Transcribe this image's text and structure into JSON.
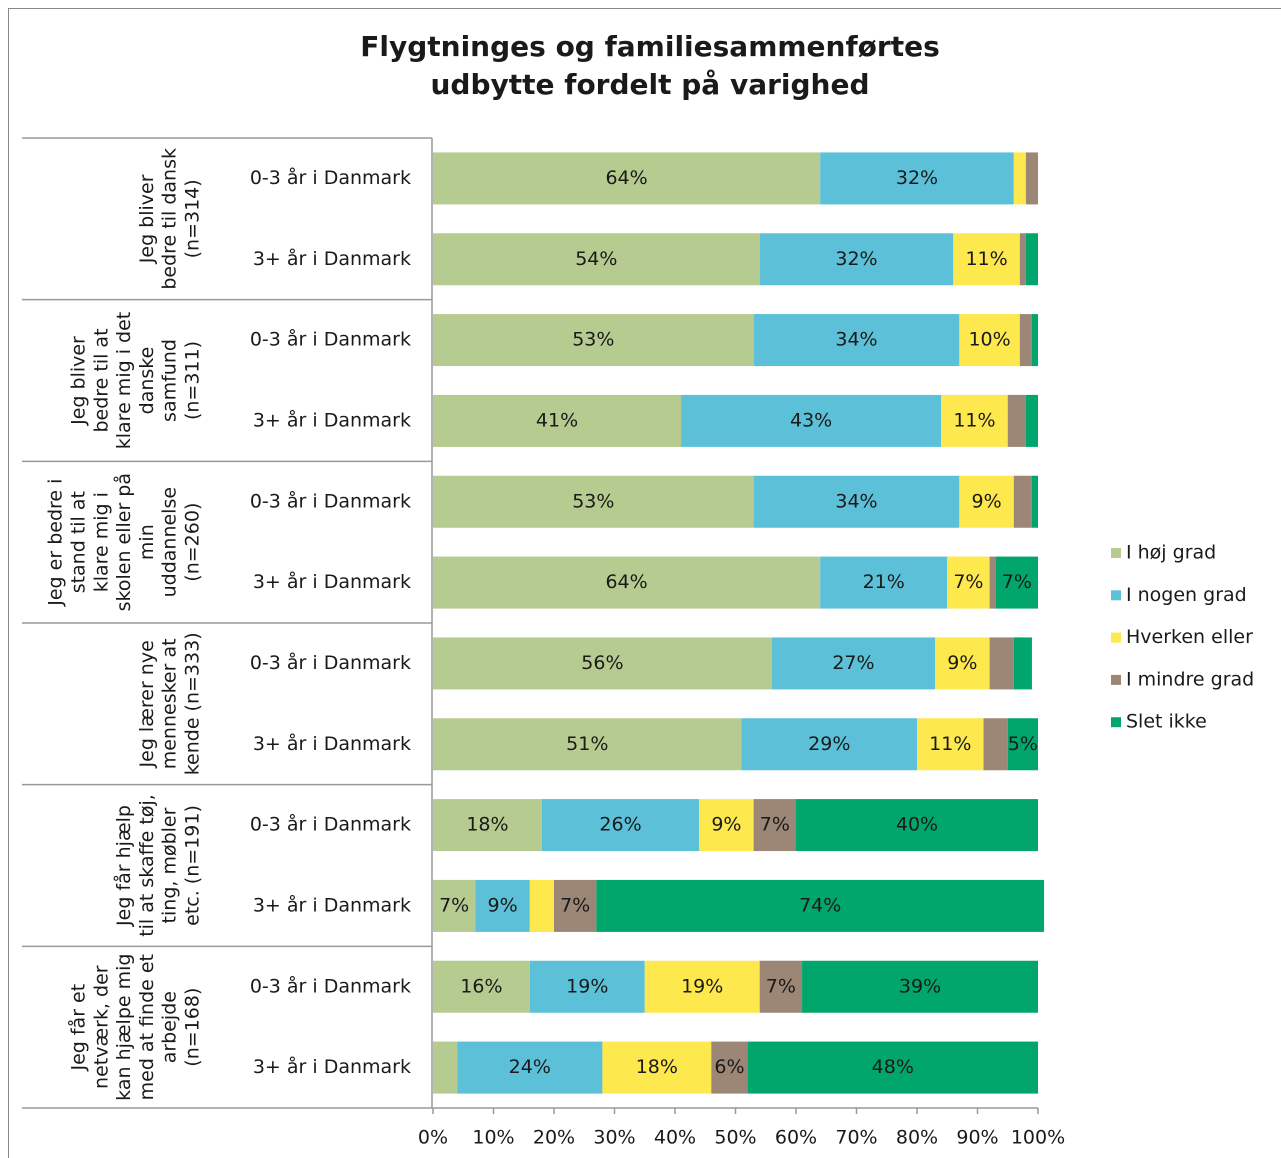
{
  "chart_data": {
    "type": "stacked_barh",
    "title_lines": [
      "Flygtninges og familiesammenførtes",
      "udbytte fordelt på varighed"
    ],
    "groups": [
      {
        "lines": [
          "Jeg bliver",
          "bedre til dansk",
          "(n=314)"
        ]
      },
      {
        "lines": [
          "Jeg bliver",
          "bedre til at",
          "klare mig i det",
          "danske",
          "samfund",
          "(n=311)"
        ]
      },
      {
        "lines": [
          "Jeg er bedre i",
          "stand til at",
          "klare mig i",
          "skolen eller på",
          "min",
          "uddannelse",
          "(n=260)"
        ]
      },
      {
        "lines": [
          "Jeg lærer nye",
          "mennesker at",
          "kende (n=333)"
        ]
      },
      {
        "lines": [
          "Jeg får hjælp",
          "til at skaffe tøj,",
          "ting, møbler",
          "etc. (n=191)"
        ]
      },
      {
        "lines": [
          "Jeg får et",
          "netværk, der",
          "kan hjælpe mig",
          "med at finde et",
          "arbejde",
          "(n=168)"
        ]
      }
    ],
    "categories": [
      "0-3 år i Danmark",
      "3+ år i Danmark",
      "0-3 år i Danmark",
      "3+ år i Danmark",
      "0-3 år i Danmark",
      "3+ år i Danmark",
      "0-3 år i Danmark",
      "3+ år i Danmark",
      "0-3 år i Danmark",
      "3+ år i Danmark",
      "0-3 år i Danmark",
      "3+ år i Danmark"
    ],
    "series": [
      {
        "name": "I høj grad",
        "color": "#b6cb8f",
        "values": [
          64,
          54,
          53,
          41,
          53,
          64,
          56,
          51,
          18,
          7,
          16,
          4
        ],
        "value_labels": [
          "64%",
          "54%",
          "53%",
          "41%",
          "53%",
          "64%",
          "56%",
          "51%",
          "18%",
          "7%",
          "16%",
          null
        ]
      },
      {
        "name": "I nogen grad",
        "color": "#5bc0d8",
        "values": [
          32,
          32,
          34,
          43,
          34,
          21,
          27,
          29,
          26,
          9,
          19,
          24
        ],
        "value_labels": [
          "32%",
          "32%",
          "34%",
          "43%",
          "34%",
          "21%",
          "27%",
          "29%",
          "26%",
          "9%",
          "19%",
          "24%"
        ]
      },
      {
        "name": "Hverken eller",
        "color": "#fde84d",
        "values": [
          2,
          11,
          10,
          11,
          9,
          7,
          9,
          11,
          9,
          4,
          19,
          18
        ],
        "value_labels": [
          null,
          "11%",
          "10%",
          "11%",
          "9%",
          "7%",
          "9%",
          "11%",
          "9%",
          null,
          "19%",
          "18%"
        ]
      },
      {
        "name": "I mindre grad",
        "color": "#9c8675",
        "values": [
          2,
          1,
          2,
          3,
          3,
          1,
          4,
          4,
          7,
          7,
          7,
          6
        ],
        "value_labels": [
          null,
          null,
          null,
          null,
          null,
          null,
          null,
          null,
          "7%",
          "7%",
          "7%",
          "6%"
        ]
      },
      {
        "name": "Slet ikke",
        "color": "#00a66c",
        "values": [
          0,
          2,
          1,
          2,
          1,
          7,
          3,
          5,
          40,
          74,
          39,
          48
        ],
        "value_labels": [
          null,
          null,
          null,
          null,
          null,
          "7%",
          null,
          "5%",
          "40%",
          "74%",
          "39%",
          "48%"
        ]
      }
    ],
    "xlim": [
      0,
      100
    ],
    "xticks": [
      {
        "value": 0,
        "label": "0%"
      },
      {
        "value": 10,
        "label": "10%"
      },
      {
        "value": 20,
        "label": "20%"
      },
      {
        "value": 30,
        "label": "30%"
      },
      {
        "value": 40,
        "label": "40%"
      },
      {
        "value": 50,
        "label": "50%"
      },
      {
        "value": 60,
        "label": "60%"
      },
      {
        "value": 70,
        "label": "70%"
      },
      {
        "value": 80,
        "label": "80%"
      },
      {
        "value": 90,
        "label": "90%"
      },
      {
        "value": 100,
        "label": "100%"
      }
    ],
    "legend": "right"
  }
}
